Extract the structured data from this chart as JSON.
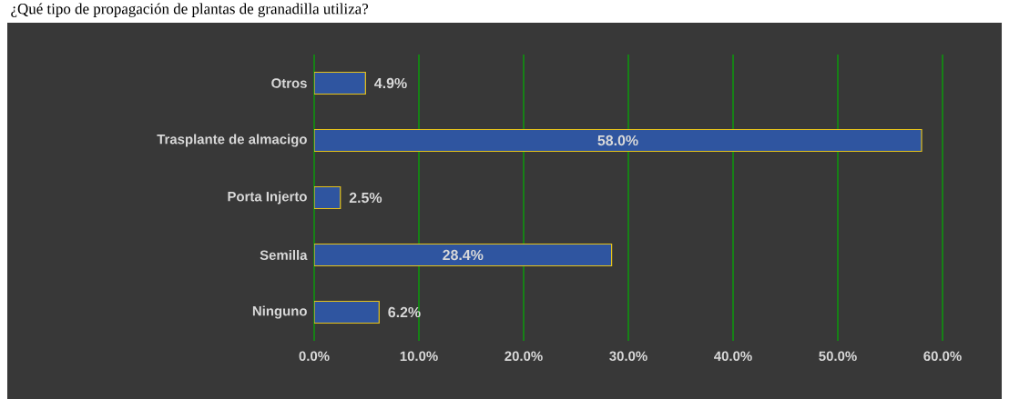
{
  "chart_data": {
    "type": "bar",
    "orientation": "horizontal",
    "title": "¿Qué tipo de propagación de plantas de granadilla utiliza?",
    "categories": [
      "Otros",
      "Trasplante de almacigo",
      "Porta Injerto",
      "Semilla",
      "Ninguno"
    ],
    "values": [
      4.9,
      58.0,
      2.5,
      28.4,
      6.2
    ],
    "value_labels": [
      "4.9%",
      "58.0%",
      "2.5%",
      "28.4%",
      "6.2%"
    ],
    "color": "#2f55a0",
    "xlim": [
      0,
      60
    ],
    "xticks": [
      {
        "value": 0,
        "label": "0.0%"
      },
      {
        "value": 10,
        "label": "10.0%"
      },
      {
        "value": 20,
        "label": "20.0%"
      },
      {
        "value": 30,
        "label": "30.0%"
      },
      {
        "value": 40,
        "label": "40.0%"
      },
      {
        "value": 50,
        "label": "50.0%"
      },
      {
        "value": 60,
        "label": "60.0%"
      }
    ],
    "grid": "x"
  }
}
